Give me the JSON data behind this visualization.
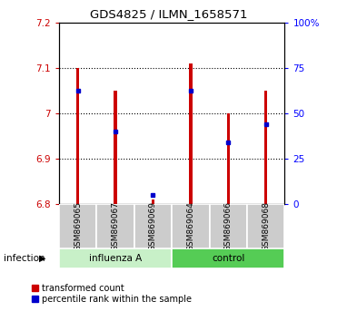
{
  "title": "GDS4825 / ILMN_1658571",
  "samples": [
    "GSM869065",
    "GSM869067",
    "GSM869069",
    "GSM869064",
    "GSM869066",
    "GSM869068"
  ],
  "red_tops": [
    7.1,
    7.05,
    6.81,
    7.11,
    7.0,
    7.05
  ],
  "blue_marks": [
    7.05,
    6.96,
    6.82,
    7.05,
    6.935,
    6.975
  ],
  "bar_bottom": 6.8,
  "ylim_left": [
    6.8,
    7.2
  ],
  "ylim_right": [
    0,
    100
  ],
  "yticks_left": [
    6.8,
    6.9,
    7.0,
    7.1,
    7.2
  ],
  "ytick_labels_left": [
    "6.8",
    "6.9",
    "7",
    "7.1",
    "7.2"
  ],
  "yticks_right": [
    0,
    25,
    50,
    75,
    100
  ],
  "ytick_labels_right": [
    "0",
    "25",
    "50",
    "75",
    "100%"
  ],
  "bar_color": "#cc0000",
  "blue_color": "#0000cc",
  "bar_width": 0.08,
  "grid_dotted_at": [
    6.9,
    7.0,
    7.1
  ],
  "influenza_color": "#c8f0c8",
  "control_color": "#55cc55",
  "label_infection": "infection",
  "legend_red": "transformed count",
  "legend_blue": "percentile rank within the sample"
}
